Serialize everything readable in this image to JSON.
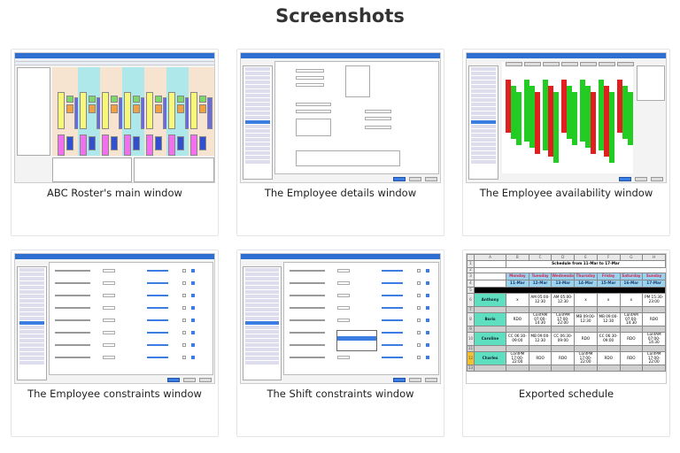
{
  "page_title": "Screenshots",
  "cards": [
    {
      "caption": "ABC Roster's main window"
    },
    {
      "caption": "The Employee details window"
    },
    {
      "caption": "The Employee availability window"
    },
    {
      "caption": "The Employee constraints window"
    },
    {
      "caption": "The Shift constraints window"
    },
    {
      "caption": "Exported schedule"
    }
  ],
  "schedule": {
    "title": "Schedule from 11-Mar to 17-Mar",
    "columns": [
      "A",
      "B",
      "C",
      "D",
      "E",
      "F",
      "G",
      "H"
    ],
    "days": [
      "Monday",
      "Tuesday",
      "Wednesday",
      "Thursday",
      "Friday",
      "Saturday",
      "Sunday"
    ],
    "dates": [
      "11-Mar",
      "12-Mar",
      "13-Mar",
      "14-Mar",
      "15-Mar",
      "16-Mar",
      "17-Mar"
    ],
    "rows": [
      {
        "num": "6",
        "name": "Anthony",
        "cells": [
          "x",
          "AM 05:00-12:30",
          "AM 05:00-12:30",
          "x",
          "x",
          "x",
          "PM 15:30-23:00"
        ]
      },
      {
        "num": "8",
        "name": "Boris",
        "cells": [
          "RDO",
          "ConfAM 07:00-14:30",
          "ConfPM 17:00-22:00",
          "MB 09:00-12:30",
          "MB 09:00-12:30",
          "ConfAM 07:00-14:30",
          "RDO"
        ]
      },
      {
        "num": "10",
        "name": "Caroline",
        "cells": [
          "CC 06:30-09:00",
          "MB 09:00-12:30",
          "CC 06:30-09:00",
          "RDO",
          "CC 06:30-09:00",
          "RDO",
          "ConfAM 07:00-14:30"
        ]
      },
      {
        "num": "12",
        "name": "Charles",
        "cells": [
          "ConfPM 17:00-22:00",
          "RDO",
          "RDO",
          "ConfPM 17:00-22:00",
          "RDO",
          "RDO",
          "ConfPM 17:00-22:00"
        ]
      }
    ],
    "row_numbers": [
      "1",
      "2",
      "3",
      "4",
      "5",
      "7",
      "9",
      "11",
      "13"
    ]
  },
  "colors": {
    "titlebar": "#2f6fd1",
    "availability_green": "#22cc22",
    "availability_red": "#e02020",
    "name_cell": "#5ee0c0",
    "day_header": "#9ad3f0"
  }
}
